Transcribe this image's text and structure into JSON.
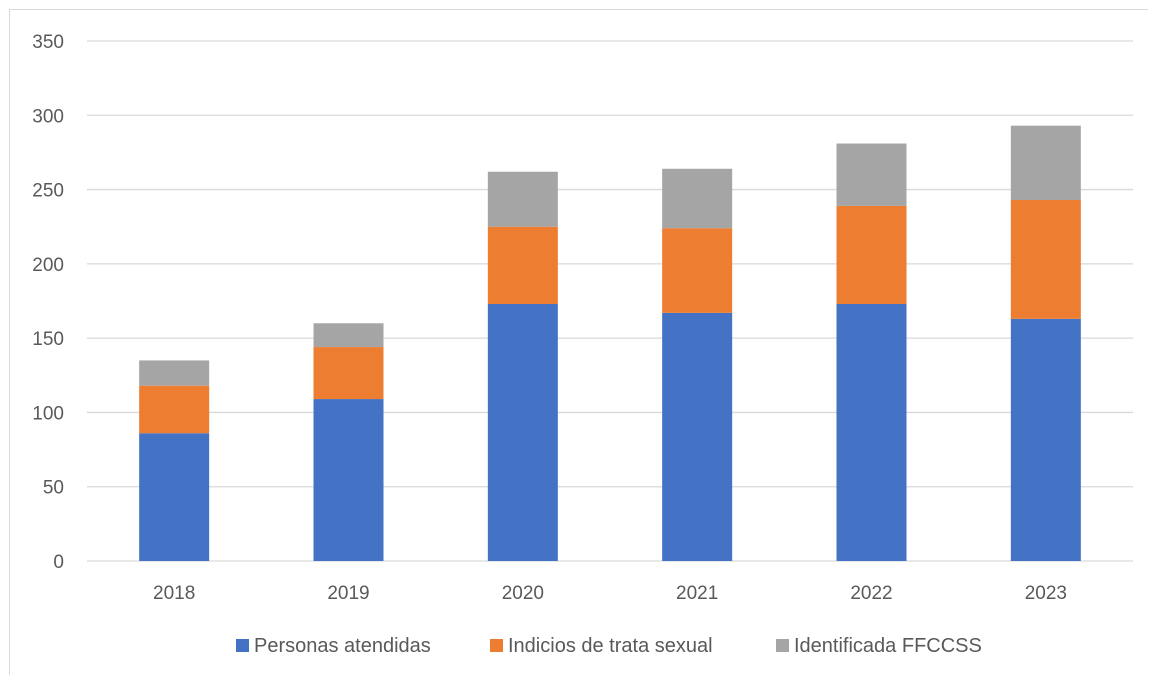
{
  "chart_data": {
    "type": "bar",
    "stacked": true,
    "categories": [
      "2018",
      "2019",
      "2020",
      "2021",
      "2022",
      "2023"
    ],
    "series": [
      {
        "name": "Personas atendidas",
        "color": "#4472C4",
        "values": [
          86,
          109,
          173,
          167,
          173,
          163
        ]
      },
      {
        "name": "Indicios de trata sexual",
        "color": "#ED7D31",
        "values": [
          32,
          35,
          52,
          57,
          66,
          80
        ]
      },
      {
        "name": "Identificada FFCCSS",
        "color": "#A5A5A5",
        "values": [
          17,
          16,
          37,
          40,
          42,
          50
        ]
      }
    ],
    "ylim": [
      0,
      350
    ],
    "yticks": [
      "0",
      "50",
      "100",
      "150",
      "200",
      "250",
      "300",
      "350"
    ],
    "grid": true,
    "legend": "bottom",
    "title": "",
    "xlabel": "",
    "ylabel": ""
  }
}
